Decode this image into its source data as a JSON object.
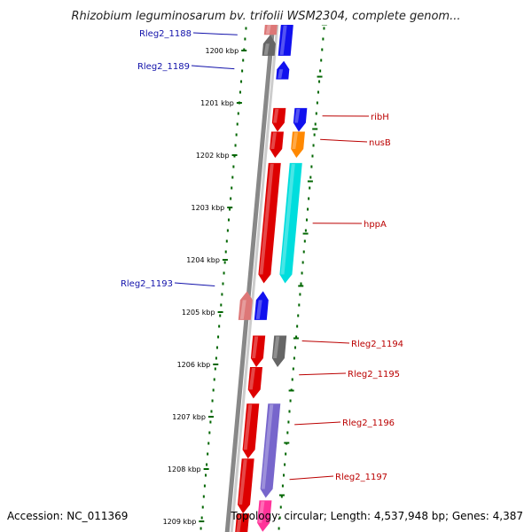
{
  "title": "Rhizobium leguminosarum bv. trifolii WSM2304, complete genom...",
  "footer": {
    "accession": "Accession: NC_011369",
    "topology": "Topology: circular; Length: 4,537,948 bp; Genes: 4,387"
  },
  "colors": {
    "forward_strand": "#dd0000",
    "reverse_strand": "#1111ee",
    "left_label": "#1111aa",
    "right_label": "#bb0000",
    "tick": "#006600",
    "backbone": "#888888",
    "gene_gray": "#666666",
    "gene_orange": "#ff8800",
    "gene_cyan": "#00dddd",
    "gene_pink": "#ff3399",
    "gene_violet": "#7766cc",
    "gene_salmon": "#dd7777"
  },
  "ticks": [
    {
      "kbp": 1200,
      "label": "1200 kbp"
    },
    {
      "kbp": 1201,
      "label": "1201 kbp"
    },
    {
      "kbp": 1202,
      "label": "1202 kbp"
    },
    {
      "kbp": 1203,
      "label": "1203 kbp"
    },
    {
      "kbp": 1204,
      "label": "1204 kbp"
    },
    {
      "kbp": 1205,
      "label": "1205 kbp"
    },
    {
      "kbp": 1206,
      "label": "1206 kbp"
    },
    {
      "kbp": 1207,
      "label": "1207 kbp"
    },
    {
      "kbp": 1208,
      "label": "1208 kbp"
    },
    {
      "kbp": 1209,
      "label": "1209 kbp"
    }
  ],
  "left_labels": [
    {
      "name": "Rleg2_1188",
      "kbp": 1199.7
    },
    {
      "name": "Rleg2_1189",
      "kbp": 1200.35
    },
    {
      "name": "Rleg2_1193",
      "kbp": 1204.5
    }
  ],
  "right_labels": [
    {
      "name": "ribH",
      "kbp": 1201.25
    },
    {
      "name": "nusB",
      "kbp": 1201.7
    },
    {
      "name": "hppA",
      "kbp": 1203.3
    },
    {
      "name": "Rleg2_1194",
      "kbp": 1205.55
    },
    {
      "name": "Rleg2_1195",
      "kbp": 1206.2
    },
    {
      "name": "Rleg2_1196",
      "kbp": 1207.15
    },
    {
      "name": "Rleg2_1197",
      "kbp": 1208.2
    }
  ],
  "genes": [
    {
      "start": 1199.35,
      "end": 1199.7,
      "lane": "f",
      "strand": -1,
      "color": "salmon"
    },
    {
      "start": 1199.7,
      "end": 1200.1,
      "lane": "f",
      "strand": -1,
      "color": "gray"
    },
    {
      "start": 1199.35,
      "end": 1200.1,
      "lane": "r",
      "strand": -1,
      "color": "blue"
    },
    {
      "start": 1200.2,
      "end": 1200.55,
      "lane": "r",
      "strand": -1,
      "color": "blue"
    },
    {
      "start": 1201.1,
      "end": 1201.55,
      "lane": "r",
      "strand": 1,
      "color": "red"
    },
    {
      "start": 1201.55,
      "end": 1202.05,
      "lane": "r",
      "strand": 1,
      "color": "red"
    },
    {
      "start": 1201.1,
      "end": 1201.55,
      "lane": "o",
      "strand": 1,
      "color": "blue"
    },
    {
      "start": 1201.55,
      "end": 1202.05,
      "lane": "o",
      "strand": 1,
      "color": "orange"
    },
    {
      "start": 1202.15,
      "end": 1204.45,
      "lane": "r",
      "strand": 1,
      "color": "red"
    },
    {
      "start": 1202.15,
      "end": 1204.45,
      "lane": "o",
      "strand": 1,
      "color": "cyan"
    },
    {
      "start": 1204.6,
      "end": 1205.15,
      "lane": "f",
      "strand": -1,
      "color": "salmon"
    },
    {
      "start": 1204.6,
      "end": 1205.15,
      "lane": "r",
      "strand": -1,
      "color": "blue"
    },
    {
      "start": 1205.45,
      "end": 1206.05,
      "lane": "r",
      "strand": 1,
      "color": "red"
    },
    {
      "start": 1205.45,
      "end": 1206.05,
      "lane": "o",
      "strand": 1,
      "color": "gray"
    },
    {
      "start": 1206.05,
      "end": 1206.65,
      "lane": "r",
      "strand": 1,
      "color": "red"
    },
    {
      "start": 1206.75,
      "end": 1207.8,
      "lane": "r",
      "strand": 1,
      "color": "red"
    },
    {
      "start": 1206.75,
      "end": 1208.55,
      "lane": "o",
      "strand": 1,
      "color": "violet"
    },
    {
      "start": 1207.8,
      "end": 1208.85,
      "lane": "r",
      "strand": 1,
      "color": "red"
    },
    {
      "start": 1208.6,
      "end": 1209.2,
      "lane": "o",
      "strand": 1,
      "color": "pink"
    },
    {
      "start": 1208.85,
      "end": 1209.4,
      "lane": "r",
      "strand": 1,
      "color": "red"
    }
  ]
}
